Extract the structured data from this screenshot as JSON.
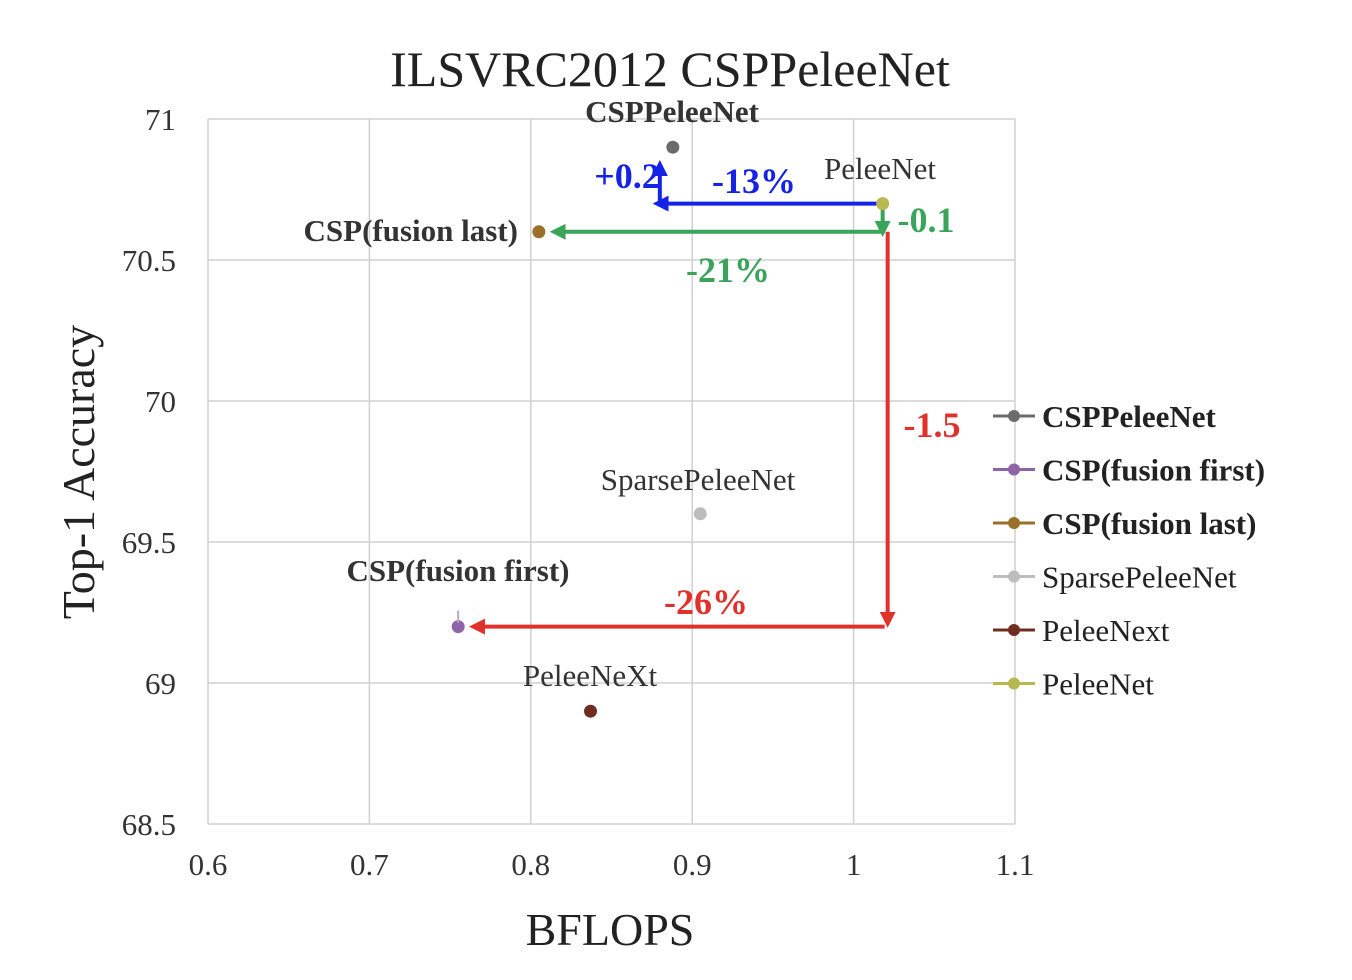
{
  "chart_data": {
    "type": "scatter",
    "title": "ILSVRC2012 CSPPeleeNet",
    "xlabel": "BFLOPS",
    "ylabel": "Top-1 Accuracy",
    "xlim": [
      0.6,
      1.1
    ],
    "ylim": [
      68.5,
      71
    ],
    "xticks": [
      "0.6",
      "0.7",
      "0.8",
      "0.9",
      "1",
      "1.1"
    ],
    "yticks": [
      "68.5",
      "69",
      "69.5",
      "70",
      "70.5",
      "71"
    ],
    "grid": true,
    "legend_position": "right",
    "series": [
      {
        "name": "CSPPeleeNet",
        "x": 0.888,
        "y": 70.9,
        "color": "#6b6b6b",
        "bold": true,
        "label": "CSPPeleeNet"
      },
      {
        "name": "CSP(fusion first)",
        "x": 0.755,
        "y": 69.2,
        "color": "#8e63a8",
        "bold": true,
        "label": "CSP(fusion first)"
      },
      {
        "name": "CSP(fusion last)",
        "x": 0.805,
        "y": 70.6,
        "color": "#9a7128",
        "bold": true,
        "label": "CSP(fusion last)"
      },
      {
        "name": "SparsePeleeNet",
        "x": 0.905,
        "y": 69.6,
        "color": "#bdbdbd",
        "bold": false,
        "label": "SparsePeleeNet"
      },
      {
        "name": "PeleeNext",
        "x": 0.837,
        "y": 68.9,
        "color": "#6e2d1e",
        "bold": false,
        "label": "PeleeNeXt"
      },
      {
        "name": "PeleeNet",
        "x": 1.018,
        "y": 70.7,
        "color": "#b7b84f",
        "bold": false,
        "label": "PeleeNet"
      }
    ],
    "annotations": [
      {
        "text": "+0.2",
        "color": "#1423e6"
      },
      {
        "text": "-13%",
        "color": "#1423e6"
      },
      {
        "text": "-0.1",
        "color": "#3aa55a"
      },
      {
        "text": "-21%",
        "color": "#3aa55a"
      },
      {
        "text": "-1.5",
        "color": "#e0312b"
      },
      {
        "text": "-26%",
        "color": "#e0312b"
      }
    ]
  }
}
